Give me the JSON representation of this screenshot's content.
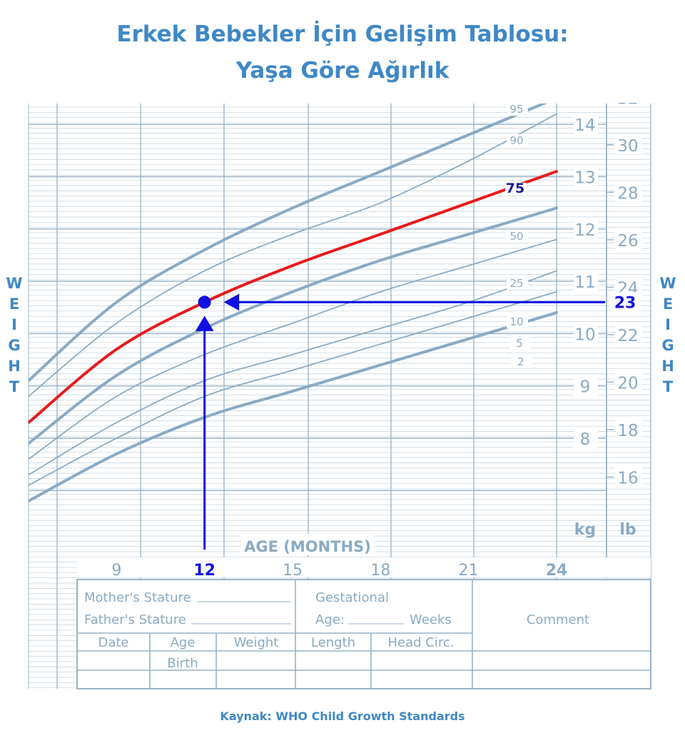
{
  "title_line1": "Erkek Bebekler İçin Gelişim Tablosu:",
  "title_line2": "Yaşa Göre Ağırlık",
  "source": "Kaynak: WHO Child Growth Standards",
  "colors": {
    "grid": "#98b3c8",
    "curve": "#8aaac4",
    "text": "#8aaac4",
    "highlight": "#e8191b",
    "marker": "#1010e0",
    "title": "#3f88c5"
  },
  "chart_data": {
    "type": "line",
    "x_axis": {
      "label": "AGE (MONTHS)",
      "ticks": [
        9,
        12,
        15,
        18,
        21,
        24
      ],
      "range": [
        6,
        24
      ]
    },
    "y_axis_kg": {
      "unit": "kg",
      "ticks": [
        8,
        9,
        10,
        11,
        12,
        13,
        14
      ],
      "range": [
        6.8,
        14.4
      ]
    },
    "y_axis_lb": {
      "unit": "lb",
      "ticks": [
        16,
        18,
        20,
        22,
        24,
        26,
        28,
        30,
        32
      ]
    },
    "side_label": "WEIGHT",
    "series": [
      {
        "name": "2",
        "x": [
          6,
          9,
          12,
          15,
          18,
          21,
          24
        ],
        "values": [
          6.8,
          7.7,
          8.4,
          8.9,
          9.4,
          9.9,
          10.4
        ]
      },
      {
        "name": "5",
        "x": [
          6,
          9,
          12,
          15,
          18,
          21,
          24
        ],
        "values": [
          7.1,
          8.0,
          8.8,
          9.3,
          9.8,
          10.3,
          10.8
        ]
      },
      {
        "name": "10",
        "x": [
          6,
          9,
          12,
          15,
          18,
          21,
          24
        ],
        "values": [
          7.3,
          8.3,
          9.1,
          9.6,
          10.1,
          10.6,
          11.2
        ]
      },
      {
        "name": "25",
        "x": [
          6,
          9,
          12,
          15,
          18,
          21,
          24
        ],
        "values": [
          7.6,
          8.8,
          9.6,
          10.2,
          10.8,
          11.3,
          11.8
        ]
      },
      {
        "name": "50",
        "x": [
          6,
          9,
          12,
          15,
          18,
          21,
          24
        ],
        "values": [
          7.9,
          9.2,
          10.1,
          10.8,
          11.4,
          11.9,
          12.4
        ]
      },
      {
        "name": "75",
        "x": [
          6,
          9,
          12,
          15,
          18,
          21,
          24
        ],
        "values": [
          8.3,
          9.7,
          10.6,
          11.3,
          11.9,
          12.5,
          13.1
        ]
      },
      {
        "name": "90",
        "x": [
          6,
          9,
          12,
          15,
          18,
          21,
          24
        ],
        "values": [
          8.8,
          10.2,
          11.2,
          11.9,
          12.5,
          13.3,
          14.2
        ]
      },
      {
        "name": "95",
        "x": [
          6,
          9,
          12,
          15,
          18,
          21,
          24
        ],
        "values": [
          9.1,
          10.6,
          11.6,
          12.4,
          13.1,
          13.8,
          14.5
        ]
      }
    ],
    "highlight_series": "75",
    "highlight": {
      "x": 12,
      "y": 10.6
    },
    "marker_labels": {
      "x": "12",
      "y": "23"
    }
  },
  "form": {
    "mother": "Mother's Stature",
    "father": "Father's Stature",
    "gestational": "Gestational",
    "age": "Age:",
    "weeks": "Weeks",
    "comment": "Comment",
    "headers": [
      "Date",
      "Age",
      "Weight",
      "Length",
      "Head  Circ."
    ],
    "birth": "Birth"
  }
}
